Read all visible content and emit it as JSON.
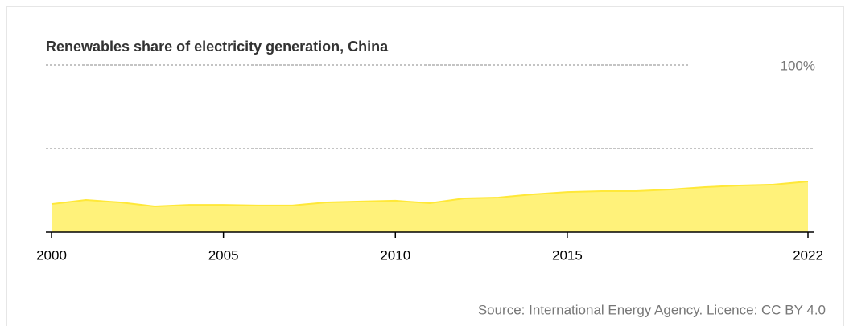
{
  "chart_data": {
    "type": "area",
    "title": "Renewables share of electricity generation, China",
    "source": "Source: International Energy Agency. Licence: CC BY 4.0",
    "x": [
      2000,
      2001,
      2002,
      2003,
      2004,
      2005,
      2006,
      2007,
      2008,
      2009,
      2010,
      2011,
      2012,
      2013,
      2014,
      2015,
      2016,
      2017,
      2018,
      2019,
      2020,
      2021,
      2022
    ],
    "values": [
      16.8,
      19.2,
      17.8,
      15.4,
      16.3,
      16.3,
      15.9,
      15.9,
      17.8,
      18.3,
      18.8,
      17.3,
      20.2,
      20.7,
      22.6,
      24.0,
      24.5,
      24.5,
      25.5,
      26.9,
      27.9,
      28.4,
      30.3
    ],
    "color": "#fff27a",
    "line_color": "#ffe838",
    "xlim": [
      2000,
      2022
    ],
    "xticks": [
      2000,
      2005,
      2010,
      2015,
      2022
    ],
    "ylim": [
      0,
      100
    ],
    "yticks": [
      {
        "value": 100,
        "label": "100%"
      }
    ],
    "gridlines": [
      50,
      100
    ],
    "grid": true
  }
}
